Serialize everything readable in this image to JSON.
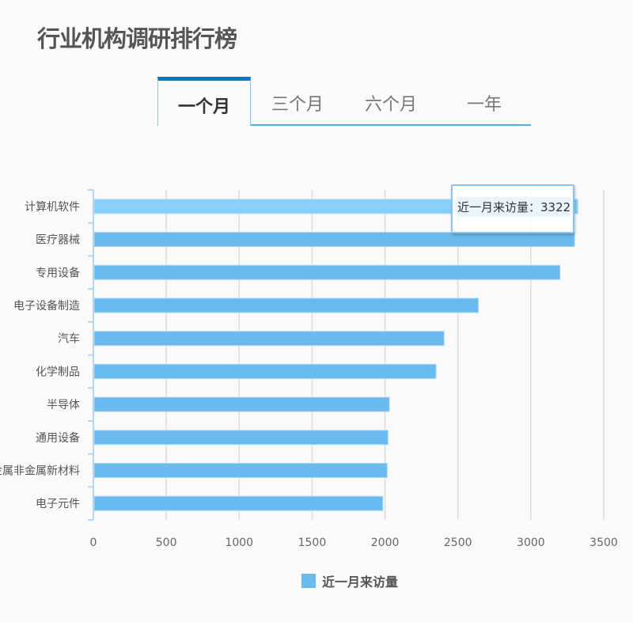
{
  "header": {
    "title": "行业机构调研排行榜"
  },
  "tabs": [
    {
      "label": "一个月",
      "active": true
    },
    {
      "label": "三个月",
      "active": false
    },
    {
      "label": "六个月",
      "active": false
    },
    {
      "label": "一年",
      "active": false
    }
  ],
  "tooltip": {
    "text": "近一月来访量：3322"
  },
  "chart_data": {
    "type": "bar",
    "orientation": "horizontal",
    "categories": [
      "计算机软件",
      "医疗器械",
      "专用设备",
      "电子设备制造",
      "汽车",
      "化学制品",
      "半导体",
      "通用设备",
      "金属非金属新材料",
      "电子元件"
    ],
    "series": [
      {
        "name": "近一月来访量",
        "values": [
          3322,
          3300,
          3200,
          2640,
          2405,
          2350,
          2030,
          2020,
          2015,
          1985
        ],
        "color": "#6ab9ef",
        "highlight_color": "#86d1fb"
      }
    ],
    "xlim": [
      0,
      3500
    ],
    "xticks": [
      "0",
      "500",
      "1000",
      "1500",
      "2000",
      "2500",
      "3000",
      "3500"
    ],
    "grid": true,
    "legend": "bottom",
    "highlighted": "计算机软件"
  }
}
